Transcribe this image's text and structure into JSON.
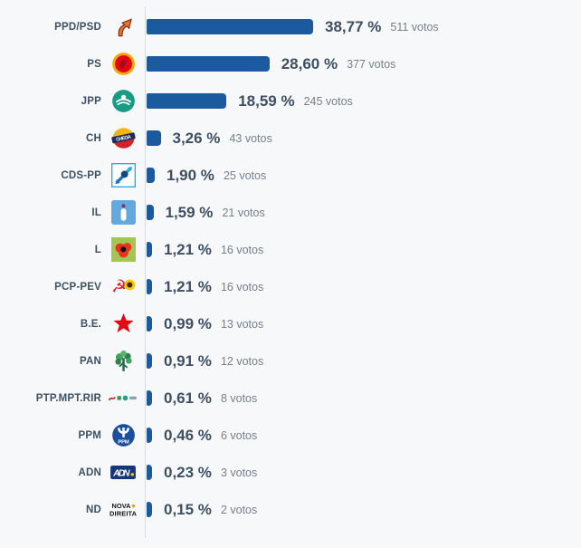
{
  "chart_data": {
    "type": "bar",
    "orientation": "horizontal",
    "title": "",
    "legend": "none",
    "grid": "none",
    "bar_color": "#1b5a9e",
    "value_label_format": "decimal-comma-percent",
    "categories": [
      "PPD/PSD",
      "PS",
      "JPP",
      "CH",
      "CDS-PP",
      "IL",
      "L",
      "PCP-PEV",
      "B.E.",
      "PAN",
      "PTP.MPT.RIR",
      "PPM",
      "ADN",
      "ND"
    ],
    "series": [
      {
        "name": "percent",
        "unit": "%",
        "values": [
          38.77,
          28.6,
          18.59,
          3.26,
          1.9,
          1.59,
          1.21,
          1.21,
          0.99,
          0.91,
          0.61,
          0.46,
          0.23,
          0.15
        ]
      },
      {
        "name": "votes",
        "unit": "votos",
        "values": [
          511,
          377,
          245,
          43,
          25,
          21,
          16,
          16,
          13,
          12,
          8,
          6,
          3,
          2
        ]
      }
    ]
  },
  "colors": {
    "background": "#f7f8f9",
    "bar": "#1b5a9e",
    "axis_line": "#d7dade",
    "party_label_text": "#3d5064",
    "percent_text": "#3e4f63",
    "votes_text": "#75808e"
  },
  "rows": [
    {
      "party": "PPD/PSD",
      "percent": 38.77,
      "percent_label": "38,77 %",
      "votes_label": "511 votos",
      "logo": "psd"
    },
    {
      "party": "PS",
      "percent": 28.6,
      "percent_label": "28,60 %",
      "votes_label": "377 votos",
      "logo": "ps"
    },
    {
      "party": "JPP",
      "percent": 18.59,
      "percent_label": "18,59 %",
      "votes_label": "245 votos",
      "logo": "jpp"
    },
    {
      "party": "CH",
      "percent": 3.26,
      "percent_label": "3,26 %",
      "votes_label": "43 votos",
      "logo": "chega"
    },
    {
      "party": "CDS-PP",
      "percent": 1.9,
      "percent_label": "1,90 %",
      "votes_label": "25 votos",
      "logo": "cdspp"
    },
    {
      "party": "IL",
      "percent": 1.59,
      "percent_label": "1,59 %",
      "votes_label": "21 votos",
      "logo": "il"
    },
    {
      "party": "L",
      "percent": 1.21,
      "percent_label": "1,21 %",
      "votes_label": "16 votos",
      "logo": "livre"
    },
    {
      "party": "PCP-PEV",
      "percent": 1.21,
      "percent_label": "1,21 %",
      "votes_label": "16 votos",
      "logo": "pcppev"
    },
    {
      "party": "B.E.",
      "percent": 0.99,
      "percent_label": "0,99 %",
      "votes_label": "13 votos",
      "logo": "be"
    },
    {
      "party": "PAN",
      "percent": 0.91,
      "percent_label": "0,91 %",
      "votes_label": "12 votos",
      "logo": "pan"
    },
    {
      "party": "PTP.MPT.RIR",
      "percent": 0.61,
      "percent_label": "0,61 %",
      "votes_label": "8 votos",
      "logo": "ptp"
    },
    {
      "party": "PPM",
      "percent": 0.46,
      "percent_label": "0,46 %",
      "votes_label": "6 votos",
      "logo": "ppm"
    },
    {
      "party": "ADN",
      "percent": 0.23,
      "percent_label": "0,23 %",
      "votes_label": "3 votos",
      "logo": "adn"
    },
    {
      "party": "ND",
      "percent": 0.15,
      "percent_label": "0,15 %",
      "votes_label": "2 votos",
      "logo": "nd"
    }
  ]
}
